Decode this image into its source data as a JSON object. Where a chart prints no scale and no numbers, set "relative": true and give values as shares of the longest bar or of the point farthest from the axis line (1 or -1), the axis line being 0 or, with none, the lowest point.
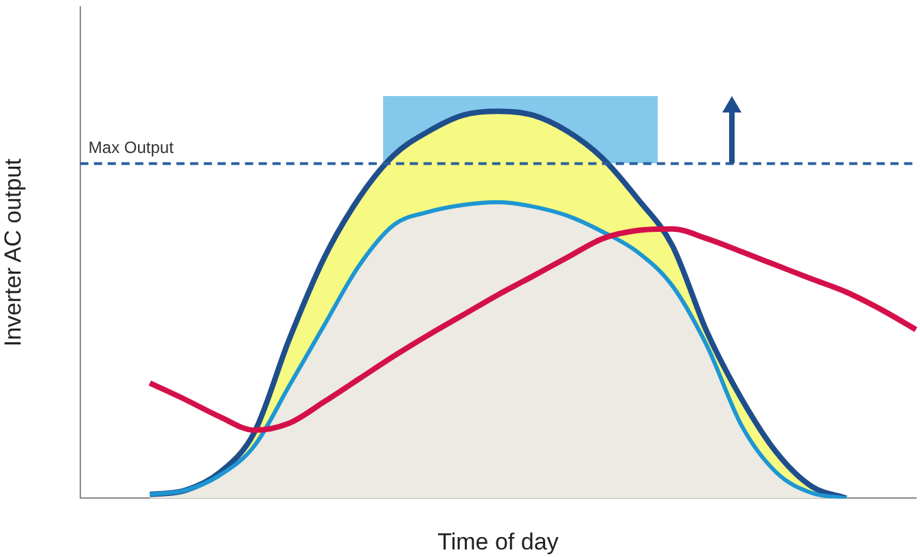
{
  "chart_data": {
    "type": "line",
    "relative": true,
    "xlabel": "Time of day",
    "ylabel": "Inverter AC output",
    "legend": false,
    "grid": false,
    "marker": "none",
    "categories": [
      null,
      null,
      null,
      null,
      null,
      null,
      null,
      null,
      null,
      null,
      null,
      null,
      null,
      null,
      null,
      null,
      null,
      null,
      null,
      null,
      null,
      null,
      null,
      null,
      null
    ],
    "series": [
      {
        "color": "#1f4e8c",
        "values": [
          null,
          null,
          0.01,
          0.02,
          0.066,
          0.17,
          0.41,
          0.62,
          0.775,
          0.886,
          0.948,
          0.99,
          1.0,
          0.99,
          0.948,
          0.879,
          0.775,
          0.654,
          0.43,
          0.256,
          0.118,
          0.031,
          0,
          null,
          null
        ],
        "lower": [
          null,
          null,
          0.01,
          0.02,
          0.059,
          0.135,
          0.29,
          0.446,
          0.6,
          0.706,
          0.74,
          0.758,
          0.765,
          0.754,
          0.73,
          0.689,
          0.637,
          0.55,
          0.394,
          0.187,
          0.066,
          0.014,
          0,
          null,
          null
        ],
        "upper": [
          null,
          null,
          0.01,
          0.02,
          0.066,
          0.17,
          0.41,
          0.62,
          0.775,
          0.886,
          0.948,
          0.99,
          1.0,
          0.99,
          0.948,
          0.879,
          0.775,
          0.654,
          0.43,
          0.256,
          0.118,
          0.031,
          0,
          null,
          null
        ]
      },
      {
        "color": "#1e96d2",
        "values": [
          null,
          null,
          0.01,
          0.02,
          0.059,
          0.135,
          0.29,
          0.446,
          0.6,
          0.706,
          0.74,
          0.758,
          0.765,
          0.754,
          0.73,
          0.689,
          0.637,
          0.55,
          0.394,
          0.187,
          0.066,
          0.014,
          0,
          null,
          null
        ],
        "lower": [
          null,
          null,
          0,
          0,
          0,
          0,
          0,
          0,
          0,
          0,
          0,
          0,
          0,
          0,
          0,
          0,
          0,
          0,
          0,
          0,
          0,
          0,
          0,
          null,
          null
        ],
        "upper": [
          null,
          null,
          0.01,
          0.02,
          0.059,
          0.135,
          0.29,
          0.446,
          0.6,
          0.706,
          0.74,
          0.758,
          0.765,
          0.754,
          0.73,
          0.689,
          0.637,
          0.55,
          0.394,
          0.187,
          0.066,
          0.014,
          0,
          null,
          null
        ]
      },
      {
        "color": "#d4104a",
        "values": [
          null,
          null,
          0.298,
          0.256,
          0.211,
          0.176,
          0.194,
          0.249,
          0.308,
          0.367,
          0.422,
          0.474,
          0.526,
          0.574,
          0.623,
          0.671,
          0.692,
          0.696,
          0.671,
          0.637,
          0.602,
          0.567,
          0.533,
          0.488,
          0.436
        ]
      }
    ],
    "ref_lines": [
      {
        "axis": "y",
        "value": 0.865,
        "label": "Max Output",
        "color": "#2b5f9e",
        "line_style": "dashed"
      }
    ]
  }
}
